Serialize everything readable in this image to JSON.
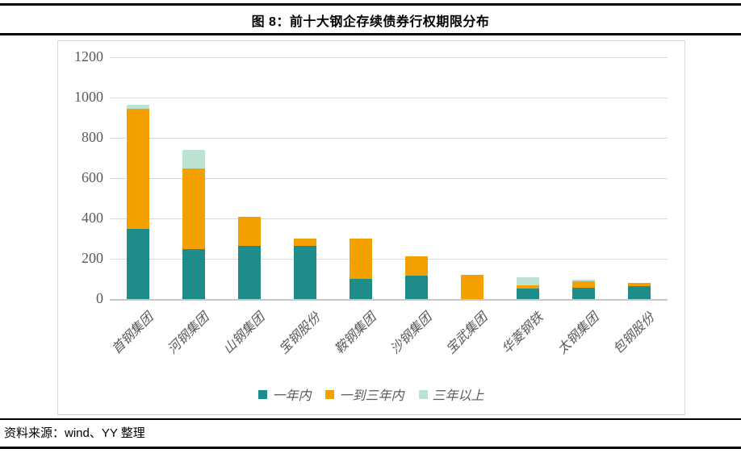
{
  "header": {
    "title": "图 8：前十大钢企存续债券行权期限分布"
  },
  "footer": {
    "source": "资料来源：wind、YY 整理"
  },
  "chart_data": {
    "type": "bar",
    "stacked": true,
    "title": "图 8：前十大钢企存续债券行权期限分布",
    "categories": [
      "首钢集团",
      "河钢集团",
      "山钢集团",
      "宝钢股份",
      "鞍钢集团",
      "沙钢集团",
      "宝武集团",
      "华菱钢铁",
      "太钢集团",
      "包钢股份"
    ],
    "series": [
      {
        "name": "一年内",
        "color": "#1F8C8C",
        "values": [
          350,
          250,
          265,
          265,
          100,
          115,
          0,
          52,
          55,
          65
        ]
      },
      {
        "name": "一到三年内",
        "color": "#F4A100",
        "values": [
          595,
          400,
          145,
          35,
          200,
          97,
          120,
          15,
          35,
          15
        ]
      },
      {
        "name": "三年以上",
        "color": "#BCE3D2",
        "values": [
          20,
          90,
          0,
          0,
          0,
          0,
          0,
          43,
          8,
          0
        ]
      }
    ],
    "totals": [
      965,
      740,
      410,
      300,
      300,
      212,
      120,
      110,
      98,
      80
    ],
    "xlabel": "",
    "ylabel": "",
    "ylim": [
      0,
      1200
    ],
    "yticks": [
      0,
      200,
      400,
      600,
      800,
      1000,
      1200
    ],
    "grid": true,
    "legend_position": "bottom",
    "gridline_color": "#d9d9d9",
    "axis_label_color": "#595959"
  }
}
